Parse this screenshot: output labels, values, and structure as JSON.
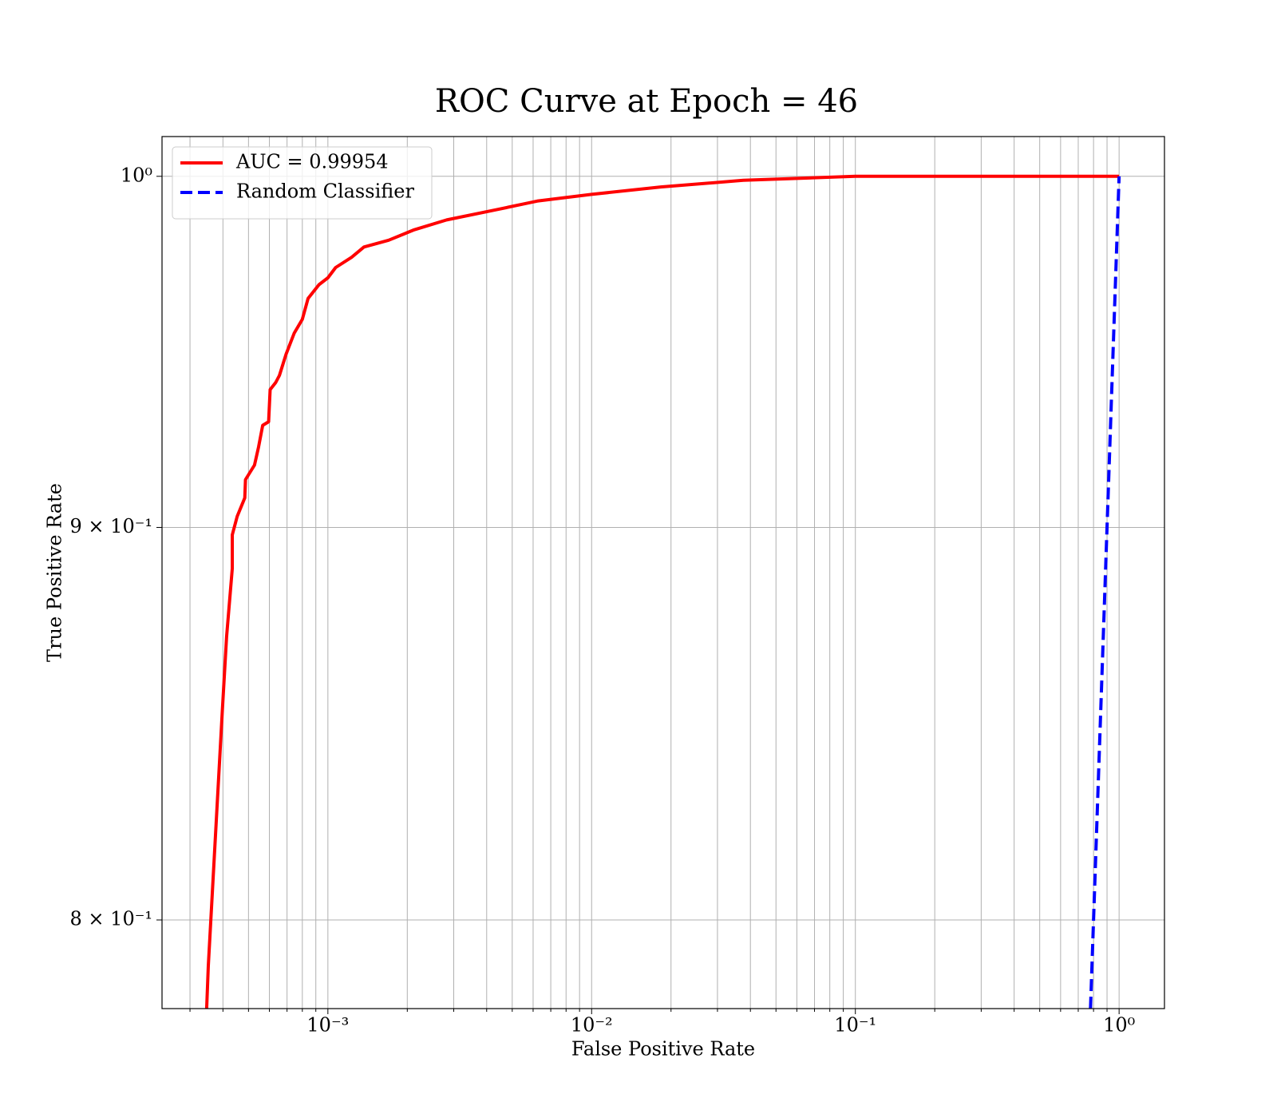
{
  "chart_data": {
    "type": "line",
    "title": "ROC Curve at Epoch = 46",
    "xlabel": "False Positive Rate",
    "ylabel": "True Positive Rate",
    "xscale": "log",
    "yscale": "log",
    "grid": true,
    "legend": "upper left",
    "xlim": [
      0.000235,
      1.486
    ],
    "ylim": [
      0.779,
      1.012
    ],
    "xticks": [
      {
        "value": 0.001,
        "label": "10⁻³"
      },
      {
        "value": 0.01,
        "label": "10⁻²"
      },
      {
        "value": 0.1,
        "label": "10⁻¹"
      },
      {
        "value": 1,
        "label": "10⁰"
      }
    ],
    "xminorticks": [
      0.0003,
      0.0004,
      0.0005,
      0.0006,
      0.0007,
      0.0008,
      0.0009,
      0.002,
      0.003,
      0.004,
      0.005,
      0.006,
      0.007,
      0.008,
      0.009,
      0.02,
      0.03,
      0.04,
      0.05,
      0.06,
      0.07,
      0.08,
      0.09,
      0.2,
      0.3,
      0.4,
      0.5,
      0.6,
      0.7,
      0.8,
      0.9
    ],
    "yticks": [
      {
        "value": 0.8,
        "label": "8 × 10⁻¹"
      },
      {
        "value": 0.9,
        "label": "9 × 10⁻¹"
      },
      {
        "value": 1,
        "label": "10⁰"
      }
    ],
    "series": [
      {
        "name": "AUC = 0.99954",
        "color": "#ff0000",
        "style": "solid",
        "x": [
          0.000347,
          0.000352,
          0.000398,
          0.000413,
          0.000434,
          0.000434,
          0.000453,
          0.000484,
          0.000487,
          0.000527,
          0.000546,
          0.000566,
          0.000596,
          0.000604,
          0.000634,
          0.000655,
          0.000694,
          0.000745,
          0.0008,
          0.000841,
          0.000925,
          0.001,
          0.00107,
          0.00123,
          0.00137,
          0.0017,
          0.00211,
          0.00282,
          0.00434,
          0.00622,
          0.01,
          0.0183,
          0.0376,
          0.1,
          1
        ],
        "values": [
          0.779,
          0.789,
          0.852,
          0.871,
          0.889,
          0.898,
          0.903,
          0.908,
          0.913,
          0.917,
          0.922,
          0.928,
          0.929,
          0.938,
          0.94,
          0.942,
          0.948,
          0.954,
          0.958,
          0.964,
          0.968,
          0.97,
          0.973,
          0.976,
          0.979,
          0.981,
          0.984,
          0.987,
          0.99,
          0.9926,
          0.9946,
          0.9968,
          0.9988,
          1,
          1
        ]
      },
      {
        "name": "Random Classifier",
        "color": "#0000ff",
        "style": "dashed",
        "x": [
          0.779,
          1
        ],
        "values": [
          0.779,
          1
        ]
      }
    ]
  }
}
